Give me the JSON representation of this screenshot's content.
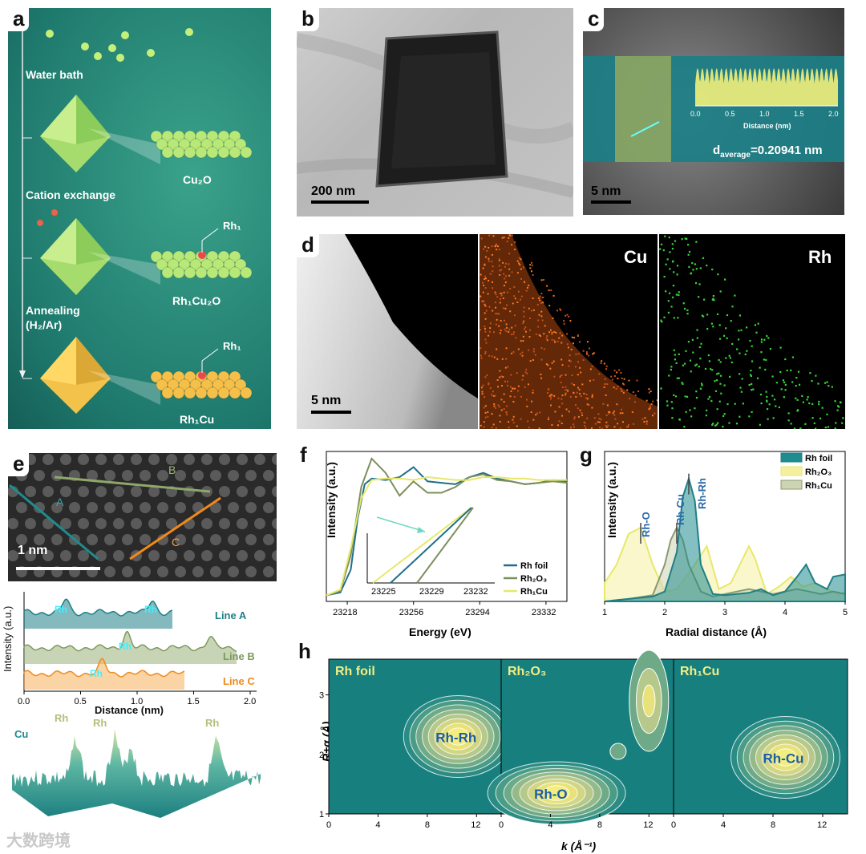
{
  "labels": {
    "a": "a",
    "b": "b",
    "c": "c",
    "d": "d",
    "e": "e",
    "f": "f",
    "g": "g",
    "h": "h"
  },
  "panel_a": {
    "water_bath": "Water bath",
    "cation_exchange": "Cation exchange",
    "annealing": "Annealing",
    "annealing_cond": "(H₂/Ar)",
    "cu2o": "Cu₂O",
    "rh1cu2o": "Rh₁Cu₂O",
    "rh1cu": "Rh₁Cu",
    "rh1_a": "Rh₁",
    "rh1_b": "Rh₁"
  },
  "panel_b": {
    "scale": "200 nm"
  },
  "panel_c": {
    "scale": "5 nm",
    "xlabel": "Distance (nm)",
    "ticks": [
      "0.0",
      "0.5",
      "1.0",
      "1.5",
      "2.0"
    ],
    "d_label": "d",
    "d_sub": "average",
    "d_value": "=0.20941 nm"
  },
  "panel_d": {
    "scale": "5 nm",
    "cu": "Cu",
    "rh": "Rh"
  },
  "panel_e": {
    "scale": "1 nm",
    "line_a": "A",
    "line_b": "B",
    "line_c": "C",
    "ylabel": "Intensity (a.u.)",
    "xlabel": "Distance (nm)",
    "ticks": [
      "0.0",
      "0.5",
      "1.0",
      "1.5",
      "2.0"
    ],
    "legend": [
      "Line A",
      "Line B",
      "Line C"
    ],
    "rh": "Rh",
    "cu": "Cu"
  },
  "colors": {
    "teal": "#1f7f86",
    "olive": "#7d9a5c",
    "yellow": "#e8e86a",
    "orange": "#f08a1c",
    "bg_teal": "#147a7d"
  },
  "chart_data": [
    {
      "id": "f",
      "type": "line",
      "title": "",
      "xlabel": "Energy (eV)",
      "ylabel": "Intensity (a.u.)",
      "x_ticks": [
        "23218",
        "23256",
        "23294",
        "23332"
      ],
      "inset_ticks": [
        "23225",
        "23229",
        "23232"
      ],
      "series": [
        {
          "name": "Rh foil",
          "x": [
            23206,
            23214,
            23220,
            23224,
            23228,
            23232,
            23240,
            23248,
            23256,
            23264,
            23272,
            23280,
            23288,
            23296,
            23304,
            23312,
            23320,
            23328,
            23336,
            23344
          ],
          "values": [
            0.02,
            0.04,
            0.2,
            0.56,
            0.8,
            0.84,
            0.83,
            0.85,
            0.92,
            0.82,
            0.81,
            0.8,
            0.85,
            0.88,
            0.84,
            0.82,
            0.8,
            0.81,
            0.83,
            0.82
          ]
        },
        {
          "name": "Rh₂O₃",
          "x": [
            23206,
            23214,
            23220,
            23226,
            23232,
            23240,
            23248,
            23256,
            23264,
            23272,
            23280,
            23288,
            23296,
            23304,
            23312,
            23320,
            23328,
            23336,
            23344
          ],
          "values": [
            0.02,
            0.05,
            0.3,
            0.78,
            0.98,
            0.88,
            0.72,
            0.82,
            0.74,
            0.74,
            0.78,
            0.85,
            0.87,
            0.83,
            0.82,
            0.8,
            0.81,
            0.82,
            0.81
          ]
        },
        {
          "name": "Rh₁Cu",
          "x": [
            23206,
            23214,
            23220,
            23226,
            23232,
            23240,
            23248,
            23256,
            23264,
            23272,
            23280,
            23288,
            23296,
            23304,
            23312,
            23320,
            23328,
            23336,
            23344
          ],
          "values": [
            0.02,
            0.06,
            0.35,
            0.7,
            0.83,
            0.84,
            0.84,
            0.83,
            0.85,
            0.84,
            0.83,
            0.83,
            0.85,
            0.85,
            0.84,
            0.84,
            0.83,
            0.83,
            0.83
          ]
        }
      ]
    },
    {
      "id": "g",
      "type": "area",
      "xlabel": "Radial distance (Å)",
      "ylabel": "Intensity (a.u.)",
      "x_ticks": [
        "1",
        "2",
        "3",
        "4",
        "5"
      ],
      "xlim": [
        1,
        5
      ],
      "annotations": [
        "Rh-O",
        "Rh-Cu",
        "Rh-Rh"
      ],
      "series": [
        {
          "name": "Rh foil",
          "x": [
            1.0,
            1.4,
            1.8,
            2.0,
            2.2,
            2.3,
            2.4,
            2.5,
            2.6,
            2.8,
            3.0,
            3.2,
            3.4,
            3.6,
            3.8,
            4.0,
            4.2,
            4.35,
            4.5,
            4.7,
            4.8,
            5.0
          ],
          "values": [
            0.0,
            0.02,
            0.04,
            0.08,
            0.4,
            0.85,
            1.0,
            0.82,
            0.3,
            0.06,
            0.05,
            0.06,
            0.07,
            0.1,
            0.05,
            0.08,
            0.2,
            0.3,
            0.15,
            0.1,
            0.2,
            0.22
          ]
        },
        {
          "name": "Rh₂O₃",
          "x": [
            1.0,
            1.2,
            1.4,
            1.6,
            1.8,
            2.0,
            2.2,
            2.5,
            2.7,
            2.9,
            3.1,
            3.3,
            3.4,
            3.5,
            3.7,
            3.9,
            4.1,
            4.3,
            4.5,
            4.7,
            4.9,
            5.0
          ],
          "values": [
            0.15,
            0.3,
            0.55,
            0.6,
            0.3,
            0.08,
            0.1,
            0.3,
            0.45,
            0.1,
            0.15,
            0.35,
            0.45,
            0.35,
            0.06,
            0.12,
            0.2,
            0.12,
            0.15,
            0.1,
            0.05,
            0.08
          ]
        },
        {
          "name": "Rh₁Cu",
          "x": [
            1.0,
            1.4,
            1.8,
            2.0,
            2.1,
            2.2,
            2.3,
            2.4,
            2.6,
            2.8,
            3.0,
            3.2,
            3.4,
            3.6,
            3.8,
            4.0,
            4.2,
            4.4,
            4.6,
            4.8,
            5.0
          ],
          "values": [
            0.0,
            0.02,
            0.05,
            0.3,
            0.5,
            0.6,
            0.5,
            0.3,
            0.08,
            0.04,
            0.06,
            0.08,
            0.1,
            0.08,
            0.06,
            0.08,
            0.1,
            0.08,
            0.06,
            0.08,
            0.06
          ]
        }
      ]
    },
    {
      "id": "h",
      "type": "heatmap",
      "xlabel": "k (Å⁻¹)",
      "ylabel": "R+α (Å)",
      "x_ticks": [
        "0",
        "4",
        "8",
        "12"
      ],
      "y_ticks": [
        "1",
        "2",
        "3"
      ],
      "maps": [
        {
          "title": "Rh foil",
          "peak_label": "Rh-Rh",
          "peak_k": 10.5,
          "peak_r": 2.3
        },
        {
          "title": "Rh₂O₃",
          "peak_label": "Rh-O",
          "peak_k": 4.5,
          "peak_r": 1.35
        },
        {
          "title": "Rh₁Cu",
          "peak_label": "Rh-Cu",
          "peak_k": 9.0,
          "peak_r": 1.95
        }
      ]
    }
  ],
  "watermark": "大数跨境"
}
